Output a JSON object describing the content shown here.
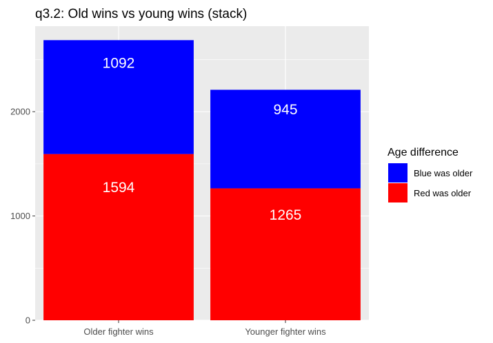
{
  "chart_data": {
    "type": "bar",
    "stacked": true,
    "title": "q3.2: Old wins vs young wins (stack)",
    "xlabel": "",
    "ylabel": "",
    "categories": [
      "Older fighter wins",
      "Younger fighter wins"
    ],
    "series": [
      {
        "name": "Red was older",
        "values": [
          1594,
          1265
        ],
        "color": "#ff0000"
      },
      {
        "name": "Blue was older",
        "values": [
          1092,
          945
        ],
        "color": "#0000ff"
      }
    ],
    "ylim": [
      0,
      2820
    ],
    "yticks": [
      0,
      1000,
      2000
    ],
    "grid": true,
    "legend": {
      "title": "Age difference",
      "placement": "right",
      "entries": [
        {
          "label": "Blue was older",
          "color": "#0000ff"
        },
        {
          "label": "Red was older",
          "color": "#ff0000"
        }
      ]
    },
    "panel_background": "#ebebeb",
    "gridline_color": "#ffffff"
  }
}
